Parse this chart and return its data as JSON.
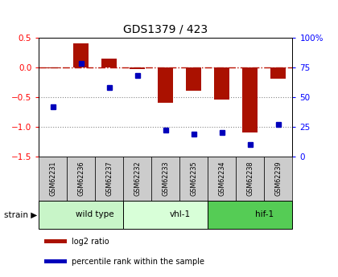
{
  "title": "GDS1379 / 423",
  "samples": [
    "GSM62231",
    "GSM62236",
    "GSM62237",
    "GSM62232",
    "GSM62233",
    "GSM62235",
    "GSM62234",
    "GSM62238",
    "GSM62239"
  ],
  "log2_ratio": [
    -0.02,
    0.4,
    0.15,
    -0.03,
    -0.6,
    -0.4,
    -0.55,
    -1.1,
    -0.2
  ],
  "pct_rank": [
    42,
    78,
    58,
    68,
    22,
    19,
    20,
    10,
    27
  ],
  "groups": [
    {
      "label": "wild type",
      "start": 0,
      "end": 3,
      "color": "#c8f5c8"
    },
    {
      "label": "vhl-1",
      "start": 3,
      "end": 6,
      "color": "#d8ffd8"
    },
    {
      "label": "hif-1",
      "start": 6,
      "end": 9,
      "color": "#55cc55"
    }
  ],
  "ylim_left": [
    -1.5,
    0.5
  ],
  "ylim_right": [
    0,
    100
  ],
  "bar_color": "#aa1100",
  "dot_color": "#0000bb",
  "hline_color": "#bb1100",
  "dotline_color": "#888888",
  "bg_color": "#ffffff",
  "plot_bg": "#ffffff",
  "label_bg": "#cccccc",
  "bar_width": 0.55,
  "left_yticks": [
    -1.5,
    -1.0,
    -0.5,
    0.0,
    0.5
  ],
  "right_yticks": [
    0,
    25,
    50,
    75,
    100
  ],
  "right_yticklabels": [
    "0",
    "25",
    "50",
    "75",
    "100%"
  ]
}
